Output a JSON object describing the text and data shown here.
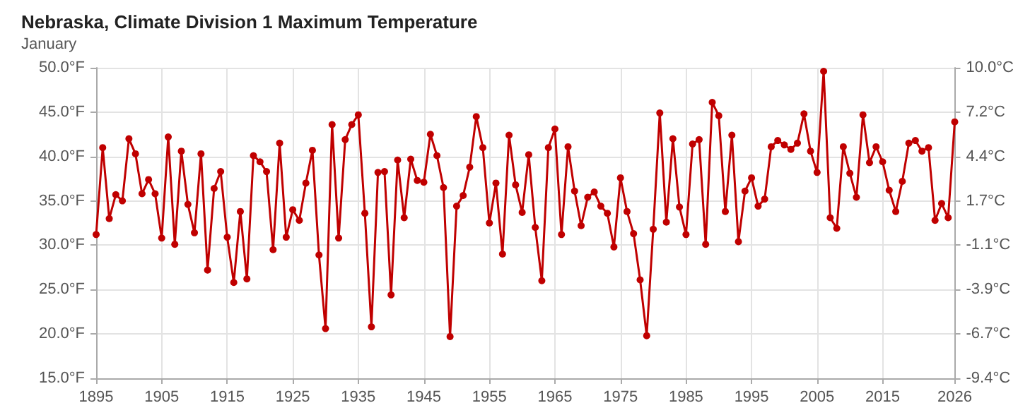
{
  "chart_data": {
    "type": "line",
    "title": "Nebraska, Climate Division 1 Maximum Temperature",
    "subtitle": "January",
    "x": [
      1895,
      1896,
      1897,
      1898,
      1899,
      1900,
      1901,
      1902,
      1903,
      1904,
      1905,
      1906,
      1907,
      1908,
      1909,
      1910,
      1911,
      1912,
      1913,
      1914,
      1915,
      1916,
      1917,
      1918,
      1919,
      1920,
      1921,
      1922,
      1923,
      1924,
      1925,
      1926,
      1927,
      1928,
      1929,
      1930,
      1931,
      1932,
      1933,
      1934,
      1935,
      1936,
      1937,
      1938,
      1939,
      1940,
      1941,
      1942,
      1943,
      1944,
      1945,
      1946,
      1947,
      1948,
      1949,
      1950,
      1951,
      1952,
      1953,
      1954,
      1955,
      1956,
      1957,
      1958,
      1959,
      1960,
      1961,
      1962,
      1963,
      1964,
      1965,
      1966,
      1967,
      1968,
      1969,
      1970,
      1971,
      1972,
      1973,
      1974,
      1975,
      1976,
      1977,
      1978,
      1979,
      1980,
      1981,
      1982,
      1983,
      1984,
      1985,
      1986,
      1987,
      1988,
      1989,
      1990,
      1991,
      1992,
      1993,
      1994,
      1995,
      1996,
      1997,
      1998,
      1999,
      2000,
      2001,
      2002,
      2003,
      2004,
      2005,
      2006,
      2007,
      2008,
      2009,
      2010,
      2011,
      2012,
      2013,
      2014,
      2015,
      2016,
      2017,
      2018,
      2019,
      2020,
      2021,
      2022,
      2023,
      2024,
      2025,
      2026
    ],
    "series": [
      {
        "color": "#c00000",
        "values": [
          31.2,
          41.0,
          33.0,
          35.7,
          35.0,
          42.0,
          40.3,
          35.8,
          37.4,
          35.8,
          30.8,
          42.2,
          30.1,
          40.6,
          34.6,
          31.4,
          40.3,
          27.2,
          36.4,
          38.3,
          30.9,
          25.8,
          33.8,
          26.2,
          40.1,
          39.4,
          38.3,
          29.5,
          41.5,
          30.9,
          34.0,
          32.8,
          37.0,
          40.7,
          28.9,
          20.6,
          43.6,
          30.8,
          41.9,
          43.6,
          44.7,
          33.6,
          20.8,
          38.2,
          38.3,
          24.4,
          39.6,
          33.1,
          39.7,
          37.3,
          37.1,
          42.5,
          40.1,
          36.5,
          19.7,
          34.4,
          35.6,
          38.8,
          44.5,
          41.0,
          32.5,
          37.0,
          29.0,
          42.4,
          36.8,
          33.7,
          40.2,
          32.0,
          26.0,
          41.0,
          43.1,
          31.2,
          41.1,
          36.1,
          32.2,
          35.4,
          36.0,
          34.4,
          33.6,
          29.8,
          37.6,
          33.8,
          31.3,
          26.1,
          19.8,
          31.8,
          44.9,
          32.6,
          42.0,
          34.3,
          31.2,
          41.4,
          41.9,
          30.1,
          46.1,
          44.6,
          33.8,
          42.4,
          30.4,
          36.1,
          37.6,
          34.4,
          35.2,
          41.1,
          41.8,
          41.3,
          40.8,
          41.5,
          44.8,
          40.6,
          38.2,
          49.6,
          33.1,
          31.9,
          41.1,
          38.1,
          35.4,
          44.7,
          39.3,
          41.1,
          39.4,
          36.2,
          33.8,
          37.2,
          41.5,
          41.8,
          40.6,
          41.0,
          32.8,
          34.7,
          33.1,
          43.9
        ]
      }
    ],
    "xlim": [
      1895,
      2026
    ],
    "xticks": [
      1895,
      1905,
      1915,
      1925,
      1935,
      1945,
      1955,
      1965,
      1975,
      1985,
      1995,
      2005,
      2015,
      2026
    ],
    "ylim": [
      15,
      50
    ],
    "yticks": [
      {
        "value": 15,
        "label": "15.0°F"
      },
      {
        "value": 20,
        "label": "20.0°F"
      },
      {
        "value": 25,
        "label": "25.0°F"
      },
      {
        "value": 30,
        "label": "30.0°F"
      },
      {
        "value": 35,
        "label": "35.0°F"
      },
      {
        "value": 40,
        "label": "40.0°F"
      },
      {
        "value": 45,
        "label": "45.0°F"
      },
      {
        "value": 50,
        "label": "50.0°F"
      }
    ],
    "y2lim": [
      -9.44,
      10
    ],
    "y2ticks": [
      {
        "value": -9.44,
        "label": "-9.4°C"
      },
      {
        "value": -6.67,
        "label": "-6.7°C"
      },
      {
        "value": -3.89,
        "label": "-3.9°C"
      },
      {
        "value": -1.11,
        "label": "-1.1°C"
      },
      {
        "value": 1.67,
        "label": "1.7°C"
      },
      {
        "value": 4.44,
        "label": "4.4°C"
      },
      {
        "value": 7.22,
        "label": "7.2°C"
      },
      {
        "value": 10,
        "label": "10.0°C"
      }
    ],
    "grid": true,
    "marker": "circle",
    "line_style": "solid"
  }
}
